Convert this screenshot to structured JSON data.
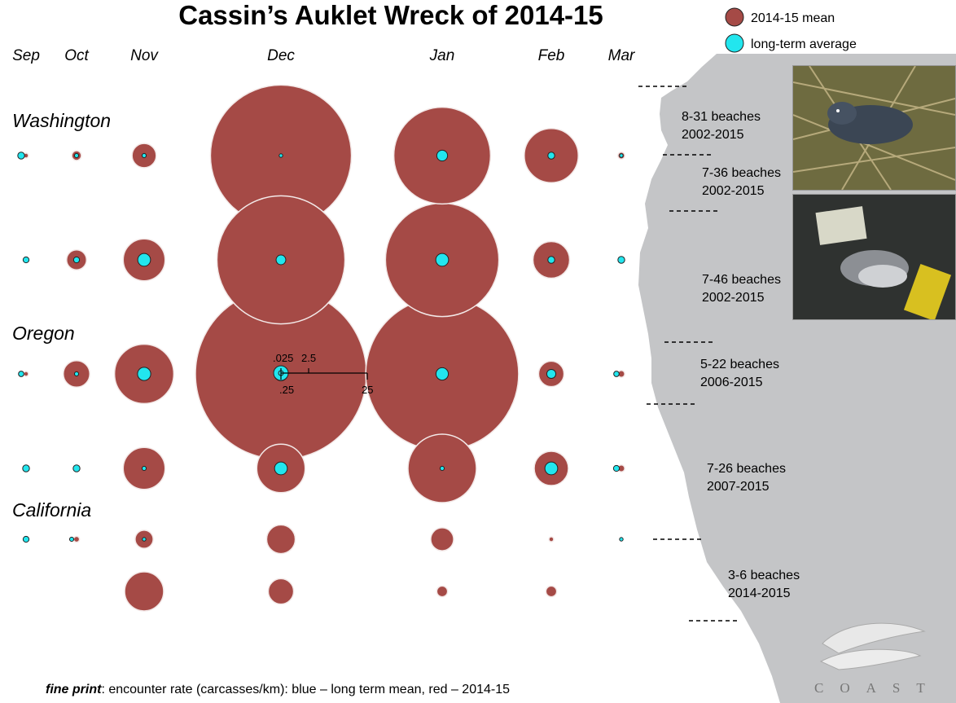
{
  "chart_data": {
    "type": "bubble-grid",
    "title": "Cassin’s Auklet Wreck of 2014-15",
    "months": [
      "Sep",
      "Oct",
      "Nov",
      "Dec",
      "Jan",
      "Feb",
      "Mar"
    ],
    "state_labels": [
      "Washington",
      "Oregon",
      "California"
    ],
    "legend": [
      {
        "label": "2014-15 mean",
        "color": "#a54a46"
      },
      {
        "label": "long-term average",
        "color": "#22e6ee"
      }
    ],
    "rows": [
      {
        "beaches": "8-31 beaches",
        "years": "2002-2015",
        "mean_2014_15": [
          0.02,
          0.08,
          0.5,
          17,
          8,
          2.5,
          0.04
        ],
        "long_term": [
          0.04,
          0.015,
          0.015,
          0.008,
          0.1,
          0.04,
          0.007
        ]
      },
      {
        "beaches": "7-36 beaches",
        "years": "2002-2015",
        "mean_2014_15": [
          0,
          0.34,
          1.5,
          14,
          11,
          1.15,
          0
        ],
        "long_term": [
          0.03,
          0.03,
          0.14,
          0.08,
          0.14,
          0.04,
          0.04
        ]
      },
      {
        "beaches": "7-46 beaches",
        "years": "2002-2015",
        "mean_2014_15": [
          0.02,
          0.6,
          3.0,
          25,
          20,
          0.55,
          0.04
        ],
        "long_term": [
          0.025,
          0.015,
          0.15,
          0.16,
          0.13,
          0.07,
          0.025
        ]
      },
      {
        "beaches": "5-22 beaches",
        "years": "2006-2015",
        "mean_2014_15": [
          0,
          0,
          1.5,
          2.0,
          4.0,
          1.0,
          0.04
        ],
        "long_term": [
          0.04,
          0.04,
          0.015,
          0.14,
          0.015,
          0.14,
          0.03
        ]
      },
      {
        "beaches": "7-26 beaches",
        "years": "2007-2015",
        "mean_2014_15": [
          0,
          0.03,
          0.28,
          0.7,
          0.45,
          0.02,
          0
        ],
        "long_term": [
          0.03,
          0.015,
          0.008,
          0,
          0,
          0,
          0.004
        ]
      },
      {
        "beaches": "3-6 beaches",
        "years": "2014-2015",
        "mean_2014_15": [
          0,
          0,
          1.3,
          0.55,
          0.1,
          0.1,
          0
        ],
        "long_term": [
          0,
          0,
          0,
          0,
          0,
          0,
          0
        ]
      }
    ],
    "scale_key": {
      "labels": [
        ".025",
        "2.5",
        ".25",
        "25"
      ]
    },
    "fine_print_label": "fine print",
    "fine_print": ": encounter rate (carcasses/km): blue – long term mean, red – 2014-15"
  },
  "logo_text": "COAST",
  "colors": {
    "red": "#a54a46",
    "cyan": "#22e6ee",
    "land": "#c4c5c7"
  }
}
